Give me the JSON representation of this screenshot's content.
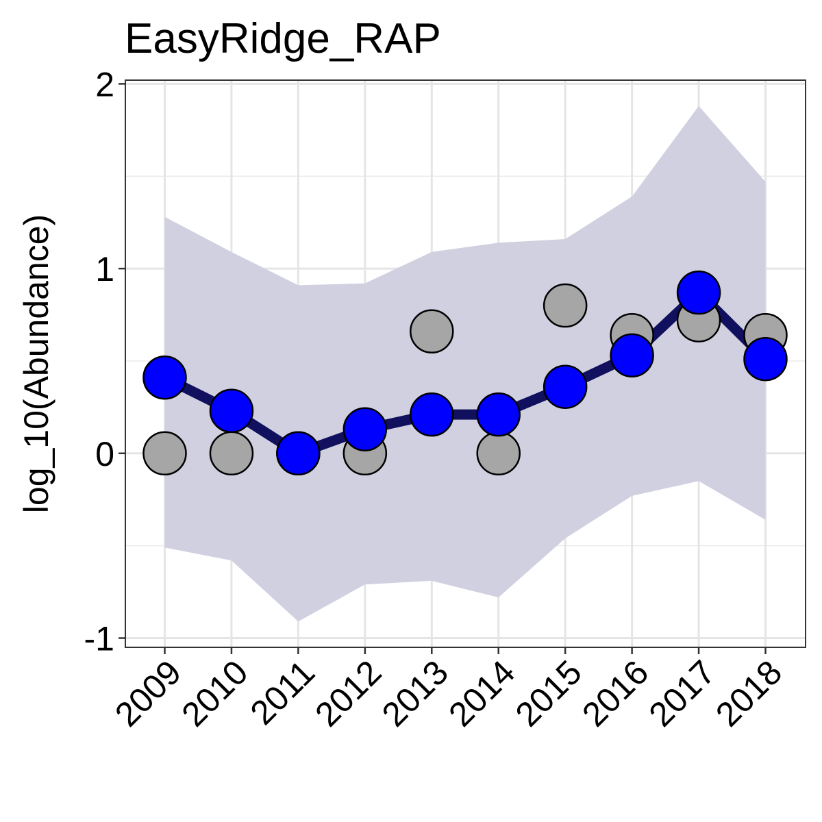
{
  "chart_data": {
    "type": "line",
    "title": "EasyRidge_RAP",
    "xlabel": "",
    "ylabel": "log_10(Abundance)",
    "x": [
      "2009",
      "2010",
      "2011",
      "2012",
      "2013",
      "2014",
      "2015",
      "2016",
      "2017",
      "2018"
    ],
    "ylim": [
      -1.05,
      2.02
    ],
    "y_ticks": [
      -1,
      0,
      1,
      2
    ],
    "grid": true,
    "legend": "none",
    "series": [
      {
        "role": "observed",
        "color": "#a6a6a6",
        "values": [
          0.0,
          0.0,
          0.0,
          0.0,
          0.66,
          0.0,
          0.8,
          0.64,
          0.72,
          0.64
        ]
      },
      {
        "role": "fitted",
        "color": "#0000ff",
        "line_color": "#10105e",
        "values": [
          0.41,
          0.23,
          0.0,
          0.13,
          0.21,
          0.21,
          0.36,
          0.53,
          0.87,
          0.51
        ]
      }
    ],
    "band": {
      "color": "#d0d0e1",
      "lower": [
        -0.51,
        -0.58,
        -0.91,
        -0.71,
        -0.69,
        -0.78,
        -0.46,
        -0.23,
        -0.15,
        -0.36
      ],
      "upper": [
        1.28,
        1.09,
        0.91,
        0.92,
        1.09,
        1.14,
        1.16,
        1.39,
        1.88,
        1.47
      ]
    }
  }
}
